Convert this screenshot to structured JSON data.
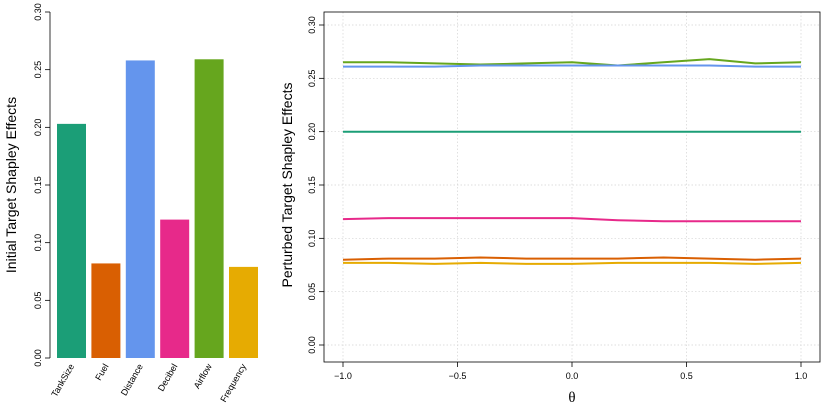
{
  "chart_data": [
    {
      "type": "bar",
      "ylabel": "Initial Target Shapley Effects",
      "xlabel": "",
      "ylim": [
        0,
        0.3
      ],
      "yticks": [
        "0.00",
        "0.05",
        "0.10",
        "0.15",
        "0.20",
        "0.25",
        "0.30"
      ],
      "categories": [
        "TankSize",
        "Fuel",
        "Distance",
        "Decibel",
        "Airflow",
        "Frequency"
      ],
      "values": [
        0.203,
        0.082,
        0.258,
        0.12,
        0.259,
        0.079
      ],
      "colors": [
        "#1b9e77",
        "#d95f02",
        "#6495ed",
        "#e7298a",
        "#66a61e",
        "#e6ab02"
      ],
      "grid": false
    },
    {
      "type": "line",
      "xlabel": "θ",
      "ylabel": "Perturbed Target Shapley Effects",
      "xlim": [
        -1.0,
        1.0
      ],
      "ylim": [
        0.0,
        0.3
      ],
      "xticks": [
        "−1.0",
        "−0.5",
        "0.0",
        "0.5",
        "1.0"
      ],
      "yticks": [
        "0.00",
        "0.05",
        "0.10",
        "0.15",
        "0.20",
        "0.25",
        "0.30"
      ],
      "grid": true,
      "x": [
        -1.0,
        -0.8,
        -0.6,
        -0.4,
        -0.2,
        0.0,
        0.2,
        0.4,
        0.6,
        0.8,
        1.0
      ],
      "series": [
        {
          "color": "#66a61e",
          "values": [
            0.265,
            0.265,
            0.264,
            0.263,
            0.264,
            0.265,
            0.262,
            0.265,
            0.268,
            0.264,
            0.265
          ]
        },
        {
          "color": "#6495ed",
          "values": [
            0.261,
            0.261,
            0.261,
            0.262,
            0.262,
            0.262,
            0.262,
            0.262,
            0.262,
            0.261,
            0.261
          ]
        },
        {
          "color": "#1b9e77",
          "values": [
            0.2,
            0.2,
            0.2,
            0.2,
            0.2,
            0.2,
            0.2,
            0.2,
            0.2,
            0.2,
            0.2
          ]
        },
        {
          "color": "#e7298a",
          "values": [
            0.118,
            0.119,
            0.119,
            0.119,
            0.119,
            0.119,
            0.117,
            0.116,
            0.116,
            0.116,
            0.116
          ]
        },
        {
          "color": "#d95f02",
          "values": [
            0.08,
            0.081,
            0.081,
            0.082,
            0.081,
            0.081,
            0.081,
            0.082,
            0.081,
            0.08,
            0.081
          ]
        },
        {
          "color": "#e6ab02",
          "values": [
            0.077,
            0.077,
            0.076,
            0.077,
            0.076,
            0.076,
            0.077,
            0.077,
            0.077,
            0.076,
            0.077
          ]
        }
      ]
    }
  ]
}
